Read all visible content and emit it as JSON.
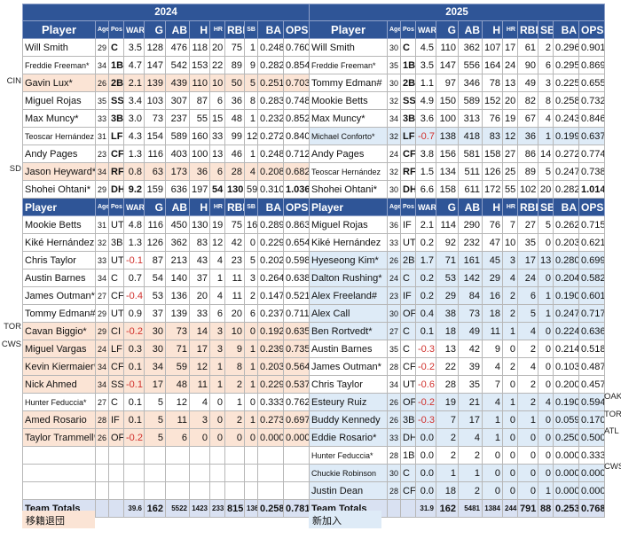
{
  "columns": [
    "Player",
    "Age",
    "Pos",
    "WAR",
    "G",
    "AB",
    "H",
    "HR",
    "RBI",
    "SB",
    "BA",
    "OPS"
  ],
  "colors": {
    "header": "#2f5597",
    "departed": "#fbe4d5",
    "new": "#deebf7",
    "negative": "#d0312d",
    "totals": "#d9e1f2"
  },
  "left": {
    "year": "2024",
    "starters": [
      {
        "c": [
          "Will Smith",
          "29",
          "C",
          "3.5",
          "128",
          "476",
          "118",
          "20",
          "75",
          "1",
          "0.248",
          "0.760"
        ]
      },
      {
        "c": [
          "Freddie Freeman*",
          "34",
          "1B",
          "4.7",
          "147",
          "542",
          "153",
          "22",
          "89",
          "9",
          "0.282",
          "0.854"
        ],
        "sm": true
      },
      {
        "c": [
          "Gavin Lux*",
          "26",
          "2B",
          "2.1",
          "139",
          "439",
          "110",
          "10",
          "50",
          "5",
          "0.251",
          "0.703"
        ],
        "hl": "o",
        "team": "CIN"
      },
      {
        "c": [
          "Miguel Rojas",
          "35",
          "SS",
          "3.4",
          "103",
          "307",
          "87",
          "6",
          "36",
          "8",
          "0.283",
          "0.748"
        ]
      },
      {
        "c": [
          "Max Muncy*",
          "33",
          "3B",
          "3.0",
          "73",
          "237",
          "55",
          "15",
          "48",
          "1",
          "0.232",
          "0.852"
        ]
      },
      {
        "c": [
          "Teoscar Hernández",
          "31",
          "LF",
          "4.3",
          "154",
          "589",
          "160",
          "33",
          "99",
          "12",
          "0.272",
          "0.840"
        ],
        "sm": true
      },
      {
        "c": [
          "Andy Pages",
          "23",
          "CF",
          "1.3",
          "116",
          "403",
          "100",
          "13",
          "46",
          "1",
          "0.248",
          "0.712"
        ]
      },
      {
        "c": [
          "Jason Heyward*",
          "34",
          "RF",
          "0.8",
          "63",
          "173",
          "36",
          "6",
          "28",
          "4",
          "0.208",
          "0.682"
        ],
        "hl": "o",
        "team": "SD"
      },
      {
        "c": [
          "Shohei Ohtani*",
          "29",
          "DH",
          "9.2",
          "159",
          "636",
          "197",
          "54",
          "130",
          "59",
          "0.310",
          "1.036"
        ],
        "bold": [
          3,
          7,
          8,
          11
        ]
      }
    ],
    "bench": [
      {
        "c": [
          "Mookie Betts",
          "31",
          "UT",
          "4.8",
          "116",
          "450",
          "130",
          "19",
          "75",
          "16",
          "0.289",
          "0.863"
        ]
      },
      {
        "c": [
          "Kiké Hernández",
          "32",
          "3B",
          "1.3",
          "126",
          "362",
          "83",
          "12",
          "42",
          "0",
          "0.229",
          "0.654"
        ]
      },
      {
        "c": [
          "Chris Taylor",
          "33",
          "UT",
          "-0.1",
          "87",
          "213",
          "43",
          "4",
          "23",
          "5",
          "0.202",
          "0.598"
        ]
      },
      {
        "c": [
          "Austin Barnes",
          "34",
          "C",
          "0.7",
          "54",
          "140",
          "37",
          "1",
          "11",
          "3",
          "0.264",
          "0.638"
        ]
      },
      {
        "c": [
          "James Outman*",
          "27",
          "CF",
          "-0.4",
          "53",
          "136",
          "20",
          "4",
          "11",
          "2",
          "0.147",
          "0.521"
        ]
      },
      {
        "c": [
          "Tommy Edman#",
          "29",
          "UT",
          "0.9",
          "37",
          "139",
          "33",
          "6",
          "20",
          "6",
          "0.237",
          "0.711"
        ]
      },
      {
        "c": [
          "Cavan Biggio*",
          "29",
          "CI",
          "-0.2",
          "30",
          "73",
          "14",
          "3",
          "10",
          "0",
          "0.192",
          "0.635"
        ],
        "hl": "o",
        "team": "TOR"
      },
      {
        "c": [
          "Miguel Vargas",
          "24",
          "LF",
          "0.3",
          "30",
          "71",
          "17",
          "3",
          "9",
          "1",
          "0.239",
          "0.735"
        ],
        "hl": "o",
        "team": "CWS"
      },
      {
        "c": [
          "Kevin Kiermaier*",
          "34",
          "CF",
          "0.1",
          "34",
          "59",
          "12",
          "1",
          "8",
          "1",
          "0.203",
          "0.564"
        ],
        "hl": "o"
      },
      {
        "c": [
          "Nick Ahmed",
          "34",
          "SS",
          "-0.1",
          "17",
          "48",
          "11",
          "1",
          "2",
          "1",
          "0.229",
          "0.537"
        ],
        "hl": "o"
      },
      {
        "c": [
          "Hunter Feduccia*",
          "27",
          "C",
          "0.1",
          "5",
          "12",
          "4",
          "0",
          "1",
          "0",
          "0.333",
          "0.762"
        ],
        "sm": true
      },
      {
        "c": [
          "Amed Rosario",
          "28",
          "IF",
          "0.1",
          "5",
          "11",
          "3",
          "0",
          "2",
          "1",
          "0.273",
          "0.697"
        ],
        "hl": "o"
      },
      {
        "c": [
          "Taylor Trammell*",
          "26",
          "OF",
          "-0.2",
          "5",
          "6",
          "0",
          "0",
          "0",
          "0",
          "0.000",
          "0.000"
        ],
        "hl": "o"
      },
      {
        "c": [
          "",
          "",
          "",
          "",
          "",
          "",
          "",
          "",
          "",
          "",
          "",
          ""
        ]
      },
      {
        "c": [
          "",
          "",
          "",
          "",
          "",
          "",
          "",
          "",
          "",
          "",
          "",
          ""
        ]
      },
      {
        "c": [
          "",
          "",
          "",
          "",
          "",
          "",
          "",
          "",
          "",
          "",
          "",
          ""
        ]
      }
    ],
    "totals": [
      "Team Totals",
      "",
      "",
      "39.6",
      "162",
      "5522",
      "1423",
      "233",
      "815",
      "136",
      "0.258",
      "0.781"
    ],
    "legend": "移籍退団"
  },
  "right": {
    "year": "2025",
    "starters": [
      {
        "c": [
          "Will Smith",
          "30",
          "C",
          "4.5",
          "110",
          "362",
          "107",
          "17",
          "61",
          "2",
          "0.296",
          "0.901"
        ]
      },
      {
        "c": [
          "Freddie Freeman*",
          "35",
          "1B",
          "3.5",
          "147",
          "556",
          "164",
          "24",
          "90",
          "6",
          "0.295",
          "0.869"
        ],
        "sm": true
      },
      {
        "c": [
          "Tommy Edman#",
          "30",
          "2B",
          "1.1",
          "97",
          "346",
          "78",
          "13",
          "49",
          "3",
          "0.225",
          "0.655"
        ]
      },
      {
        "c": [
          "Mookie Betts",
          "32",
          "SS",
          "4.9",
          "150",
          "589",
          "152",
          "20",
          "82",
          "8",
          "0.258",
          "0.732"
        ]
      },
      {
        "c": [
          "Max Muncy*",
          "34",
          "3B",
          "3.6",
          "100",
          "313",
          "76",
          "19",
          "67",
          "4",
          "0.243",
          "0.846"
        ]
      },
      {
        "c": [
          "Michael Conforto*",
          "32",
          "LF",
          "-0.7",
          "138",
          "418",
          "83",
          "12",
          "36",
          "1",
          "0.199",
          "0.637"
        ],
        "hl": "b",
        "sm": true
      },
      {
        "c": [
          "Andy Pages",
          "24",
          "CF",
          "3.8",
          "156",
          "581",
          "158",
          "27",
          "86",
          "14",
          "0.272",
          "0.774"
        ]
      },
      {
        "c": [
          "Teoscar Hernández",
          "32",
          "RF",
          "1.5",
          "134",
          "511",
          "126",
          "25",
          "89",
          "5",
          "0.247",
          "0.738"
        ],
        "sm": true
      },
      {
        "c": [
          "Shohei Ohtani*",
          "30",
          "DH",
          "6.6",
          "158",
          "611",
          "172",
          "55",
          "102",
          "20",
          "0.282",
          "1.014"
        ],
        "bold": [
          11
        ]
      }
    ],
    "bench": [
      {
        "c": [
          "Miguel Rojas",
          "36",
          "IF",
          "2.1",
          "114",
          "290",
          "76",
          "7",
          "27",
          "5",
          "0.262",
          "0.715"
        ]
      },
      {
        "c": [
          "Kiké Hernández",
          "33",
          "UT",
          "0.2",
          "92",
          "232",
          "47",
          "10",
          "35",
          "0",
          "0.203",
          "0.621"
        ]
      },
      {
        "c": [
          "Hyeseong Kim*",
          "26",
          "2B",
          "1.7",
          "71",
          "161",
          "45",
          "3",
          "17",
          "13",
          "0.280",
          "0.699"
        ],
        "hl": "b"
      },
      {
        "c": [
          "Dalton Rushing*",
          "24",
          "C",
          "0.2",
          "53",
          "142",
          "29",
          "4",
          "24",
          "0",
          "0.204",
          "0.582"
        ],
        "hl": "b"
      },
      {
        "c": [
          "Alex Freeland#",
          "23",
          "IF",
          "0.2",
          "29",
          "84",
          "16",
          "2",
          "6",
          "1",
          "0.190",
          "0.601"
        ],
        "hl": "b"
      },
      {
        "c": [
          "Alex Call",
          "30",
          "OF",
          "0.4",
          "38",
          "73",
          "18",
          "2",
          "5",
          "1",
          "0.247",
          "0.717"
        ],
        "hl": "b"
      },
      {
        "c": [
          "Ben Rortvedt*",
          "27",
          "C",
          "0.1",
          "18",
          "49",
          "11",
          "1",
          "4",
          "0",
          "0.224",
          "0.636"
        ],
        "hl": "b"
      },
      {
        "c": [
          "Austin Barnes",
          "35",
          "C",
          "-0.3",
          "13",
          "42",
          "9",
          "0",
          "2",
          "0",
          "0.214",
          "0.518"
        ]
      },
      {
        "c": [
          "James Outman*",
          "28",
          "CF",
          "-0.2",
          "22",
          "39",
          "4",
          "2",
          "4",
          "0",
          "0.103",
          "0.487"
        ]
      },
      {
        "c": [
          "Chris Taylor",
          "34",
          "UT",
          "-0.6",
          "28",
          "35",
          "7",
          "0",
          "2",
          "0",
          "0.200",
          "0.457"
        ]
      },
      {
        "c": [
          "Esteury Ruiz",
          "26",
          "OF",
          "-0.2",
          "19",
          "21",
          "4",
          "1",
          "2",
          "4",
          "0.190",
          "0.594"
        ],
        "hl": "b",
        "team": "OAK"
      },
      {
        "c": [
          "Buddy Kennedy",
          "26",
          "3B",
          "-0.3",
          "7",
          "17",
          "1",
          "0",
          "1",
          "0",
          "0.059",
          "0.170"
        ],
        "hl": "b",
        "team": "TOR"
      },
      {
        "c": [
          "Eddie Rosario*",
          "33",
          "DH",
          "0.0",
          "2",
          "4",
          "1",
          "0",
          "0",
          "0",
          "0.250",
          "0.500"
        ],
        "hl": "b",
        "team": "ATL"
      },
      {
        "c": [
          "Hunter Feduccia*",
          "28",
          "1B",
          "0.0",
          "2",
          "2",
          "0",
          "0",
          "0",
          "0",
          "0.000",
          "0.333"
        ],
        "sm": true
      },
      {
        "c": [
          "Chuckie Robinson",
          "30",
          "C",
          "0.0",
          "1",
          "1",
          "0",
          "0",
          "0",
          "0",
          "0.000",
          "0.000"
        ],
        "hl": "b",
        "sm": true,
        "team": "CWS"
      },
      {
        "c": [
          "Justin Dean",
          "28",
          "CF",
          "0.0",
          "18",
          "2",
          "0",
          "0",
          "0",
          "1",
          "0.000",
          "0.000"
        ],
        "hl": "b"
      }
    ],
    "totals": [
      "Team Totals",
      "",
      "",
      "31.9",
      "162",
      "5481",
      "1384",
      "244",
      "791",
      "88",
      "0.253",
      "0.768"
    ],
    "legend": "新加入"
  }
}
